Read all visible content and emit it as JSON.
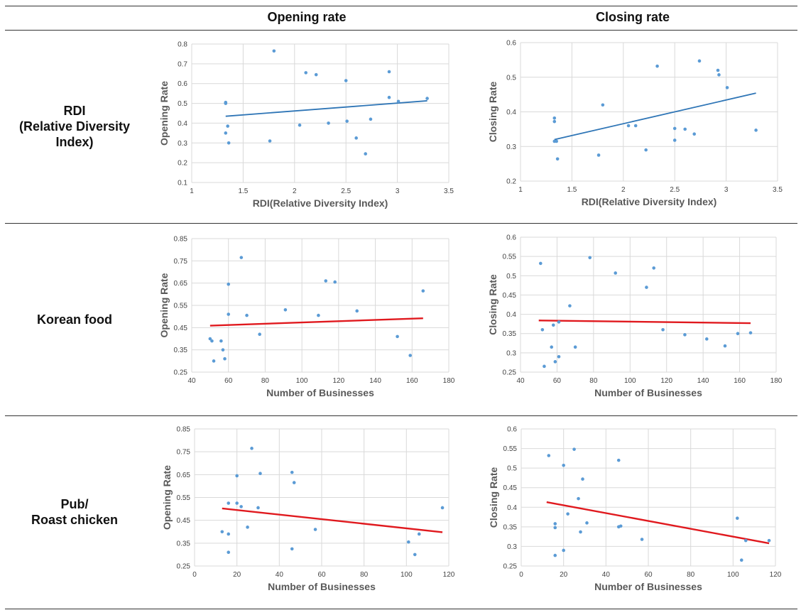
{
  "columns": [
    "Opening rate",
    "Closing rate"
  ],
  "rows": [
    {
      "lines": [
        "RDI",
        "(Relative Diversity",
        "Index)"
      ]
    },
    {
      "lines": [
        "Korean food"
      ]
    },
    {
      "lines": [
        "Pub/",
        "Roast chicken"
      ]
    }
  ],
  "colors": {
    "points": "#5b9bd5",
    "trend_blue": "#2e75b6",
    "trend_red": "#e0191e",
    "grid": "#d9d9d9"
  },
  "chart_data": [
    {
      "type": "scatter",
      "id": "rdi-opening",
      "xlabel": "RDI(Relative Diversity Index)",
      "ylabel": "Opening Rate",
      "xlim": [
        1,
        3.5
      ],
      "ylim": [
        0.1,
        0.8
      ],
      "xticks": [
        1,
        1.5,
        2,
        2.5,
        3,
        3.5
      ],
      "xtick_labels": [
        "1",
        "1.5",
        "2",
        "2.5",
        "3",
        "3.5"
      ],
      "yticks": [
        0.1,
        0.2,
        0.3,
        0.4,
        0.5,
        0.6,
        0.7,
        0.8
      ],
      "ytick_labels": [
        "0.1",
        "0.2",
        "0.3",
        "0.4",
        "0.5",
        "0.6",
        "0.7",
        "0.8"
      ],
      "points": [
        [
          1.33,
          0.505
        ],
        [
          1.33,
          0.5
        ],
        [
          1.33,
          0.35
        ],
        [
          1.35,
          0.385
        ],
        [
          1.36,
          0.3
        ],
        [
          1.76,
          0.31
        ],
        [
          1.8,
          0.765
        ],
        [
          2.05,
          0.39
        ],
        [
          2.11,
          0.655
        ],
        [
          2.21,
          0.645
        ],
        [
          2.33,
          0.4
        ],
        [
          2.5,
          0.615
        ],
        [
          2.51,
          0.41
        ],
        [
          2.6,
          0.325
        ],
        [
          2.69,
          0.245
        ],
        [
          2.74,
          0.42
        ],
        [
          2.92,
          0.66
        ],
        [
          2.92,
          0.53
        ],
        [
          3.01,
          0.51
        ],
        [
          3.29,
          0.525
        ]
      ],
      "trend": [
        [
          1.33,
          0.435
        ],
        [
          3.29,
          0.513
        ]
      ],
      "trend_color": "blue"
    },
    {
      "type": "scatter",
      "id": "rdi-closing",
      "xlabel": "RDI(Relative Diversity Index)",
      "ylabel": "Closing Rate",
      "xlim": [
        1,
        3.5
      ],
      "ylim": [
        0.2,
        0.6
      ],
      "xticks": [
        1,
        1.5,
        2,
        2.5,
        3,
        3.5
      ],
      "xtick_labels": [
        "1",
        "1.5",
        "2",
        "2.5",
        "3",
        "3.5"
      ],
      "yticks": [
        0.2,
        0.3,
        0.4,
        0.5,
        0.6
      ],
      "ytick_labels": [
        "0.2",
        "0.3",
        "0.4",
        "0.5",
        "0.6"
      ],
      "points": [
        [
          1.33,
          0.382
        ],
        [
          1.33,
          0.372
        ],
        [
          1.33,
          0.315
        ],
        [
          1.35,
          0.315
        ],
        [
          1.36,
          0.264
        ],
        [
          1.76,
          0.275
        ],
        [
          1.8,
          0.42
        ],
        [
          2.05,
          0.36
        ],
        [
          2.12,
          0.36
        ],
        [
          2.22,
          0.29
        ],
        [
          2.33,
          0.532
        ],
        [
          2.5,
          0.352
        ],
        [
          2.5,
          0.318
        ],
        [
          2.6,
          0.35
        ],
        [
          2.69,
          0.336
        ],
        [
          2.74,
          0.547
        ],
        [
          2.92,
          0.52
        ],
        [
          2.93,
          0.507
        ],
        [
          3.01,
          0.47
        ],
        [
          3.29,
          0.347
        ]
      ],
      "trend": [
        [
          1.33,
          0.32
        ],
        [
          3.29,
          0.454
        ]
      ],
      "trend_color": "blue"
    },
    {
      "type": "scatter",
      "id": "korean-opening",
      "xlabel": "Number of Businesses",
      "ylabel": "Opening Rate",
      "xlim": [
        40,
        180
      ],
      "ylim": [
        0.25,
        0.85
      ],
      "xticks": [
        40,
        60,
        80,
        100,
        120,
        140,
        160,
        180
      ],
      "xtick_labels": [
        "40",
        "60",
        "80",
        "100",
        "120",
        "140",
        "160",
        "180"
      ],
      "yticks": [
        0.25,
        0.35,
        0.45,
        0.55,
        0.65,
        0.75,
        0.85
      ],
      "ytick_labels": [
        "0.25",
        "0.35",
        "0.45",
        "0.55",
        "0.65",
        "0.75",
        "0.85"
      ],
      "points": [
        [
          50,
          0.4
        ],
        [
          51,
          0.39
        ],
        [
          52,
          0.3
        ],
        [
          56,
          0.39
        ],
        [
          57,
          0.35
        ],
        [
          58,
          0.31
        ],
        [
          60,
          0.645
        ],
        [
          60,
          0.51
        ],
        [
          67,
          0.765
        ],
        [
          70,
          0.505
        ],
        [
          77,
          0.42
        ],
        [
          91,
          0.53
        ],
        [
          109,
          0.505
        ],
        [
          113,
          0.66
        ],
        [
          118,
          0.655
        ],
        [
          130,
          0.525
        ],
        [
          152,
          0.41
        ],
        [
          159,
          0.325
        ],
        [
          166,
          0.615
        ]
      ],
      "trend": [
        [
          50,
          0.459
        ],
        [
          166,
          0.492
        ]
      ],
      "trend_color": "red"
    },
    {
      "type": "scatter",
      "id": "korean-closing",
      "xlabel": "Number of Businesses",
      "ylabel": "Closing Rate",
      "xlim": [
        40,
        180
      ],
      "ylim": [
        0.25,
        0.6
      ],
      "xticks": [
        40,
        60,
        80,
        100,
        120,
        140,
        160,
        180
      ],
      "xtick_labels": [
        "40",
        "60",
        "80",
        "100",
        "120",
        "140",
        "160",
        "180"
      ],
      "yticks": [
        0.25,
        0.3,
        0.35,
        0.4,
        0.45,
        0.5,
        0.55,
        0.6
      ],
      "ytick_labels": [
        "0.25",
        "0.3",
        "0.35",
        "0.4",
        "0.45",
        "0.5",
        "0.55",
        "0.6"
      ],
      "points": [
        [
          51,
          0.532
        ],
        [
          52,
          0.36
        ],
        [
          53,
          0.265
        ],
        [
          57,
          0.315
        ],
        [
          58,
          0.372
        ],
        [
          59,
          0.277
        ],
        [
          61,
          0.29
        ],
        [
          61,
          0.38
        ],
        [
          67,
          0.422
        ],
        [
          70,
          0.315
        ],
        [
          78,
          0.547
        ],
        [
          92,
          0.507
        ],
        [
          109,
          0.47
        ],
        [
          113,
          0.52
        ],
        [
          118,
          0.36
        ],
        [
          130,
          0.347
        ],
        [
          142,
          0.336
        ],
        [
          152,
          0.318
        ],
        [
          159,
          0.35
        ],
        [
          166,
          0.352
        ]
      ],
      "trend": [
        [
          50,
          0.384
        ],
        [
          166,
          0.377
        ]
      ],
      "trend_color": "red"
    },
    {
      "type": "scatter",
      "id": "pub-opening",
      "xlabel": "Number of Businesses",
      "ylabel": "Opening Rate",
      "xlim": [
        0,
        120
      ],
      "ylim": [
        0.25,
        0.85
      ],
      "xticks": [
        0,
        20,
        40,
        60,
        80,
        100,
        120
      ],
      "xtick_labels": [
        "0",
        "20",
        "40",
        "60",
        "80",
        "100",
        "120"
      ],
      "yticks": [
        0.25,
        0.35,
        0.45,
        0.55,
        0.65,
        0.75,
        0.85
      ],
      "ytick_labels": [
        "0.25",
        "0.35",
        "0.45",
        "0.55",
        "0.65",
        "0.75",
        "0.85"
      ],
      "points": [
        [
          13,
          0.4
        ],
        [
          16,
          0.39
        ],
        [
          16,
          0.31
        ],
        [
          16,
          0.525
        ],
        [
          20,
          0.525
        ],
        [
          20,
          0.645
        ],
        [
          22,
          0.51
        ],
        [
          25,
          0.42
        ],
        [
          27,
          0.765
        ],
        [
          30,
          0.505
        ],
        [
          31,
          0.655
        ],
        [
          46,
          0.66
        ],
        [
          46,
          0.325
        ],
        [
          47,
          0.615
        ],
        [
          57,
          0.41
        ],
        [
          101,
          0.355
        ],
        [
          104,
          0.3
        ],
        [
          106,
          0.39
        ],
        [
          117,
          0.505
        ]
      ],
      "trend": [
        [
          13,
          0.502
        ],
        [
          117,
          0.398
        ]
      ],
      "trend_color": "red"
    },
    {
      "type": "scatter",
      "id": "pub-closing",
      "xlabel": "Number of Businesses",
      "ylabel": "Closing Rate",
      "xlim": [
        0,
        120
      ],
      "ylim": [
        0.25,
        0.6
      ],
      "xticks": [
        0,
        20,
        40,
        60,
        80,
        100,
        120
      ],
      "xtick_labels": [
        "0",
        "20",
        "40",
        "60",
        "80",
        "100",
        "120"
      ],
      "yticks": [
        0.25,
        0.3,
        0.35,
        0.4,
        0.45,
        0.5,
        0.55,
        0.6
      ],
      "ytick_labels": [
        "0.25",
        "0.3",
        "0.35",
        "0.4",
        "0.45",
        "0.5",
        "0.55",
        "0.6"
      ],
      "points": [
        [
          13,
          0.532
        ],
        [
          16,
          0.358
        ],
        [
          16,
          0.348
        ],
        [
          16,
          0.277
        ],
        [
          20,
          0.507
        ],
        [
          20,
          0.29
        ],
        [
          22,
          0.383
        ],
        [
          25,
          0.548
        ],
        [
          27,
          0.422
        ],
        [
          28,
          0.337
        ],
        [
          29,
          0.472
        ],
        [
          31,
          0.36
        ],
        [
          46,
          0.52
        ],
        [
          46,
          0.35
        ],
        [
          47,
          0.352
        ],
        [
          57,
          0.318
        ],
        [
          102,
          0.372
        ],
        [
          104,
          0.265
        ],
        [
          106,
          0.315
        ],
        [
          117,
          0.315
        ]
      ],
      "trend": [
        [
          12,
          0.413
        ],
        [
          117,
          0.308
        ]
      ],
      "trend_color": "red"
    }
  ]
}
